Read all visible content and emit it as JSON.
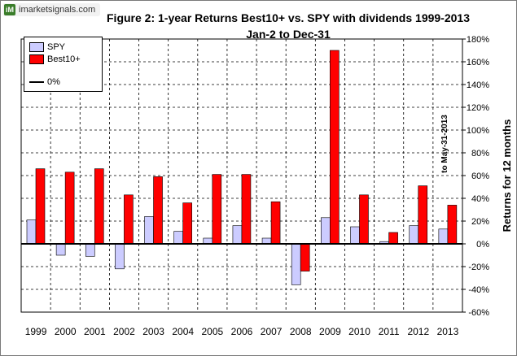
{
  "logo": {
    "mark": "iM",
    "text": "imarketsignals.com"
  },
  "chart_data": {
    "type": "bar",
    "title": "Figure 2:  1-year Returns Best10+ vs. SPY with dividends  1999-2013",
    "subtitle": "Jan-2 to Dec-31",
    "ylabel": "Returns for 12 months",
    "xlabel": "",
    "categories": [
      "1999",
      "2000",
      "2001",
      "2002",
      "2003",
      "2004",
      "2005",
      "2006",
      "2007",
      "2008",
      "2009",
      "2010",
      "2011",
      "2012",
      "2013"
    ],
    "series": [
      {
        "name": "SPY",
        "color": "#ccccff",
        "values": [
          21,
          -10,
          -11,
          -22,
          24,
          11,
          5,
          16,
          5,
          -36,
          23,
          15,
          2,
          16,
          13
        ]
      },
      {
        "name": "Best10+",
        "color": "#ff0000",
        "values": [
          66,
          63,
          66,
          43,
          59,
          36,
          61,
          61,
          37,
          -24,
          170,
          43,
          10,
          51,
          34
        ]
      }
    ],
    "ylim": [
      -60,
      180
    ],
    "yticks": [
      -60,
      -40,
      -20,
      0,
      20,
      40,
      60,
      80,
      100,
      120,
      140,
      160,
      180
    ],
    "ytick_labels": [
      "-60%",
      "-40%",
      "-20%",
      "0%",
      "20%",
      "40%",
      "60%",
      "80%",
      "100%",
      "120%",
      "140%",
      "160%",
      "180%"
    ],
    "zero_line_label": "0%",
    "annotation": "to May-31-2013",
    "grid": true,
    "legend_position": "top-left"
  },
  "colors": {
    "spy": "#ccccff",
    "best": "#ff0000",
    "grid": "#000000"
  }
}
